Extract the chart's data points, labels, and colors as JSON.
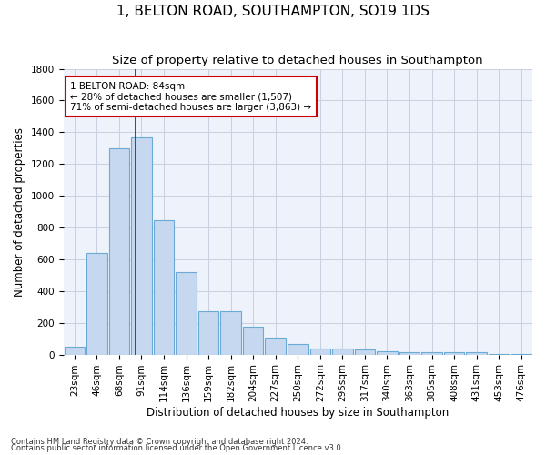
{
  "title": "1, BELTON ROAD, SOUTHAMPTON, SO19 1DS",
  "subtitle": "Size of property relative to detached houses in Southampton",
  "xlabel": "Distribution of detached houses by size in Southampton",
  "ylabel": "Number of detached properties",
  "footnote1": "Contains HM Land Registry data © Crown copyright and database right 2024.",
  "footnote2": "Contains public sector information licensed under the Open Government Licence v3.0.",
  "bar_labels": [
    "23sqm",
    "46sqm",
    "68sqm",
    "91sqm",
    "114sqm",
    "136sqm",
    "159sqm",
    "182sqm",
    "204sqm",
    "227sqm",
    "250sqm",
    "272sqm",
    "295sqm",
    "317sqm",
    "340sqm",
    "363sqm",
    "385sqm",
    "408sqm",
    "431sqm",
    "453sqm",
    "476sqm"
  ],
  "bar_values": [
    50,
    640,
    1300,
    1370,
    845,
    520,
    275,
    275,
    175,
    105,
    65,
    38,
    38,
    30,
    22,
    15,
    15,
    13,
    15,
    2,
    2
  ],
  "bar_color": "#c5d8f0",
  "bar_edge_color": "#6aaad4",
  "vline_x": 2.72,
  "vline_color": "#cc0000",
  "annotation_text": "1 BELTON ROAD: 84sqm\n← 28% of detached houses are smaller (1,507)\n71% of semi-detached houses are larger (3,863) →",
  "annotation_box_color": "#cc0000",
  "ylim": [
    0,
    1800
  ],
  "yticks": [
    0,
    200,
    400,
    600,
    800,
    1000,
    1200,
    1400,
    1600,
    1800
  ],
  "background_color": "#eef2fb",
  "grid_color": "#c8cfe0",
  "title_fontsize": 11,
  "subtitle_fontsize": 9.5,
  "xlabel_fontsize": 8.5,
  "ylabel_fontsize": 8.5,
  "tick_fontsize": 7.5,
  "annotation_fontsize": 7.5,
  "footnote_fontsize": 6
}
